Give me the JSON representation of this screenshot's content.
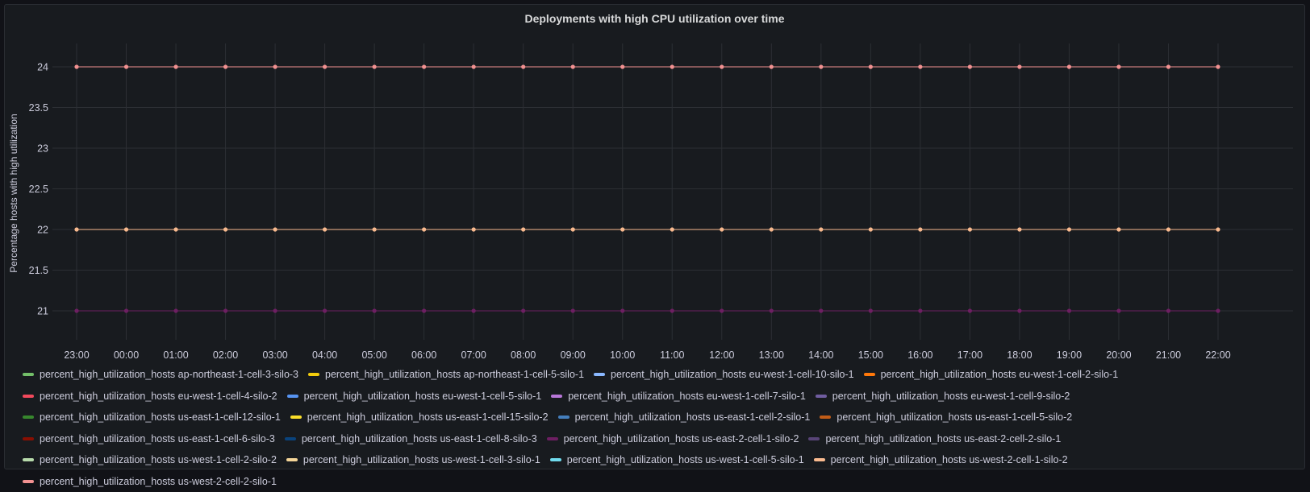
{
  "chart_data": {
    "type": "line",
    "title": "Deployments with high CPU utilization over time",
    "xlabel": "",
    "ylabel": "Percentage hosts with high utilization",
    "x": [
      "23:00",
      "00:00",
      "01:00",
      "02:00",
      "03:00",
      "04:00",
      "05:00",
      "06:00",
      "07:00",
      "08:00",
      "09:00",
      "10:00",
      "11:00",
      "12:00",
      "13:00",
      "14:00",
      "15:00",
      "16:00",
      "17:00",
      "18:00",
      "19:00",
      "20:00",
      "21:00",
      "22:00"
    ],
    "yticks": [
      "21",
      "21.5",
      "22",
      "22.5",
      "23",
      "23.5",
      "24"
    ],
    "ylim": [
      20.75,
      24.25
    ],
    "grid": true,
    "legend_placement": "bottom",
    "series": [
      {
        "name": "percent_high_utilization_hosts us-west-2-cell-2-silo-1",
        "color": "#F29191",
        "values": [
          24,
          24,
          24,
          24,
          24,
          24,
          24,
          24,
          24,
          24,
          24,
          24,
          24,
          24,
          24,
          24,
          24,
          24,
          24,
          24,
          24,
          24,
          24,
          24
        ]
      },
      {
        "name": "percent_high_utilization_hosts us-west-2-cell-1-silo-2",
        "color": "#F9BA8F",
        "values": [
          22,
          22,
          22,
          22,
          22,
          22,
          22,
          22,
          22,
          22,
          22,
          22,
          22,
          22,
          22,
          22,
          22,
          22,
          22,
          22,
          22,
          22,
          22,
          22
        ]
      },
      {
        "name": "percent_high_utilization_hosts us-east-2-cell-1-silo-2",
        "color": "#6D1F62",
        "values": [
          21,
          21,
          21,
          21,
          21,
          21,
          21,
          21,
          21,
          21,
          21,
          21,
          21,
          21,
          21,
          21,
          21,
          21,
          21,
          21,
          21,
          21,
          21,
          21
        ]
      }
    ],
    "legend": [
      {
        "label": "percent_high_utilization_hosts ap-northeast-1-cell-3-silo-3",
        "color": "#73BF69"
      },
      {
        "label": "percent_high_utilization_hosts ap-northeast-1-cell-5-silo-1",
        "color": "#F2CC0C"
      },
      {
        "label": "percent_high_utilization_hosts eu-west-1-cell-10-silo-1",
        "color": "#8AB8FF"
      },
      {
        "label": "percent_high_utilization_hosts eu-west-1-cell-2-silo-1",
        "color": "#FF780A"
      },
      {
        "label": "percent_high_utilization_hosts eu-west-1-cell-4-silo-2",
        "color": "#F2495C"
      },
      {
        "label": "percent_high_utilization_hosts eu-west-1-cell-5-silo-1",
        "color": "#5794F2"
      },
      {
        "label": "percent_high_utilization_hosts eu-west-1-cell-7-silo-1",
        "color": "#B877D9"
      },
      {
        "label": "percent_high_utilization_hosts eu-west-1-cell-9-silo-2",
        "color": "#705DA0"
      },
      {
        "label": "percent_high_utilization_hosts us-east-1-cell-12-silo-1",
        "color": "#37872D"
      },
      {
        "label": "percent_high_utilization_hosts us-east-1-cell-15-silo-2",
        "color": "#FADE2A"
      },
      {
        "label": "percent_high_utilization_hosts us-east-1-cell-2-silo-1",
        "color": "#447EBC"
      },
      {
        "label": "percent_high_utilization_hosts us-east-1-cell-5-silo-2",
        "color": "#C15C17"
      },
      {
        "label": "percent_high_utilization_hosts us-east-1-cell-6-silo-3",
        "color": "#890F02"
      },
      {
        "label": "percent_high_utilization_hosts us-east-1-cell-8-silo-3",
        "color": "#0A437C"
      },
      {
        "label": "percent_high_utilization_hosts us-east-2-cell-1-silo-2",
        "color": "#6D1F62"
      },
      {
        "label": "percent_high_utilization_hosts us-east-2-cell-2-silo-1",
        "color": "#584477"
      },
      {
        "label": "percent_high_utilization_hosts us-west-1-cell-2-silo-2",
        "color": "#B7DBAB"
      },
      {
        "label": "percent_high_utilization_hosts us-west-1-cell-3-silo-1",
        "color": "#F4D598"
      },
      {
        "label": "percent_high_utilization_hosts us-west-1-cell-5-silo-1",
        "color": "#70DBED"
      },
      {
        "label": "percent_high_utilization_hosts us-west-2-cell-1-silo-2",
        "color": "#F9BA8F"
      },
      {
        "label": "percent_high_utilization_hosts us-west-2-cell-2-silo-1",
        "color": "#F29191"
      }
    ]
  }
}
